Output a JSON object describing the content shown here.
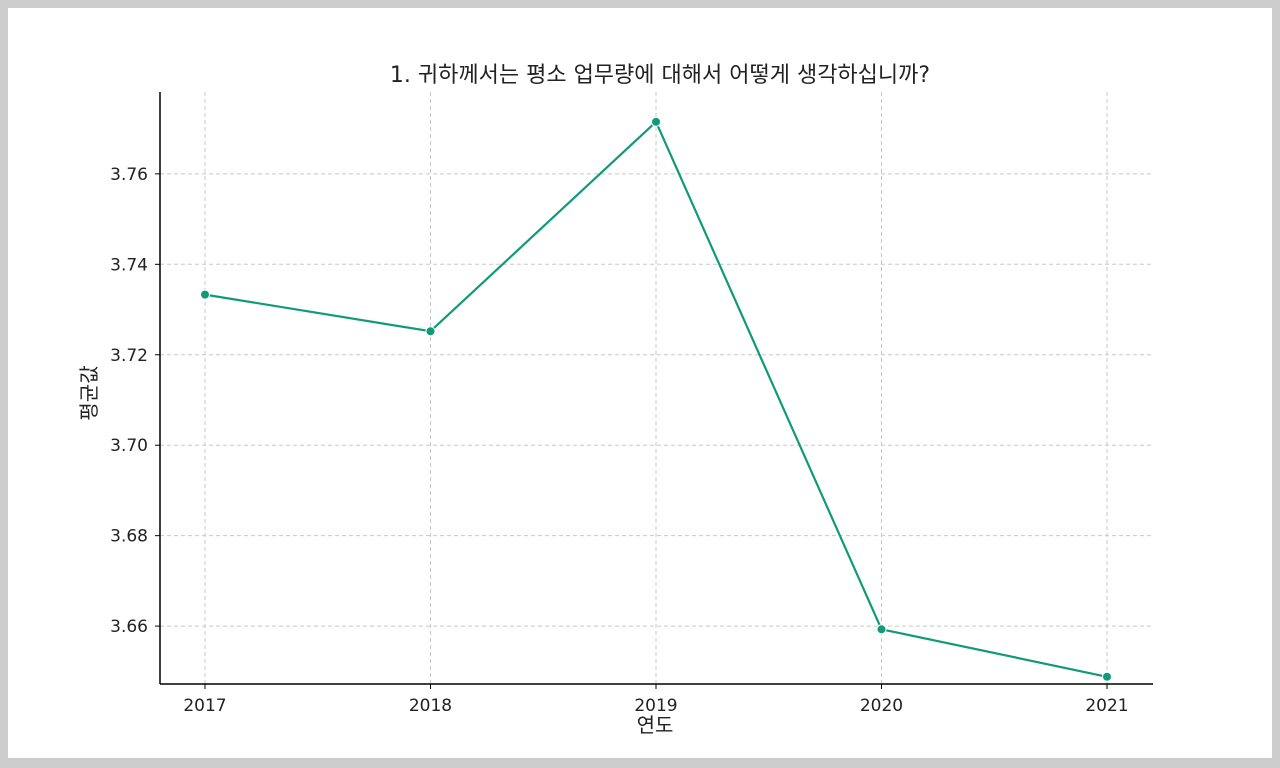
{
  "chart_data": {
    "type": "line",
    "title": "1. 귀하께서는 평소 업무량에 대해서 어떻게 생각하십니까?",
    "xlabel": "연도",
    "ylabel": "평균값",
    "x": [
      "2017",
      "2018",
      "2019",
      "2020",
      "2021"
    ],
    "series": [
      {
        "values": [
          3.7333,
          3.7252,
          3.7715,
          3.6593,
          3.6488
        ]
      }
    ],
    "yticks": [
      "3.66",
      "3.68",
      "3.70",
      "3.72",
      "3.74",
      "3.76"
    ],
    "ylim": [
      3.6472,
      3.7781
    ],
    "grid": true,
    "colors": {
      "line": "#109a77",
      "grid": "#c8c8c8",
      "axis": "#000000"
    }
  }
}
